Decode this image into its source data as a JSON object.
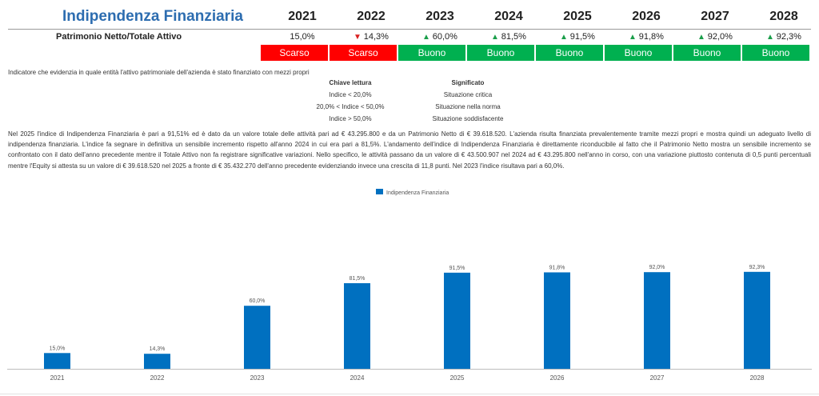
{
  "title": "Indipendenza Finanziaria",
  "years": [
    "2021",
    "2022",
    "2023",
    "2024",
    "2025",
    "2026",
    "2027",
    "2028"
  ],
  "row_label": "Patrimonio Netto/Totale Attivo",
  "values": [
    {
      "text": "15,0%",
      "trend": ""
    },
    {
      "text": "14,3%",
      "trend": "down"
    },
    {
      "text": "60,0%",
      "trend": "up"
    },
    {
      "text": "81,5%",
      "trend": "up"
    },
    {
      "text": "91,5%",
      "trend": "up"
    },
    {
      "text": "91,8%",
      "trend": "up"
    },
    {
      "text": "92,0%",
      "trend": "up"
    },
    {
      "text": "92,3%",
      "trend": "up"
    }
  ],
  "badges": [
    {
      "label": "Scarso",
      "color": "#ff0000"
    },
    {
      "label": "Scarso",
      "color": "#ff0000"
    },
    {
      "label": "Buono",
      "color": "#00b050"
    },
    {
      "label": "Buono",
      "color": "#00b050"
    },
    {
      "label": "Buono",
      "color": "#00b050"
    },
    {
      "label": "Buono",
      "color": "#00b050"
    },
    {
      "label": "Buono",
      "color": "#00b050"
    },
    {
      "label": "Buono",
      "color": "#00b050"
    }
  ],
  "description": "Indicatore che evidenzia in quale entità l'attivo patrimoniale dell'azienda è stato finanziato con mezzi propri",
  "key": {
    "col1_header": "Chiave lettura",
    "col2_header": "Significato",
    "rows": [
      {
        "k": "Indice < 20,0%",
        "v": "Situazione critica"
      },
      {
        "k": "20,0% < Indice < 50,0%",
        "v": "Situazione nella norma"
      },
      {
        "k": "Indice > 50,0%",
        "v": "Situazione soddisfacente"
      }
    ]
  },
  "paragraph": "Nel 2025 l'indice di Indipendenza Finanziaria è pari a 91,51% ed è dato da un valore totale delle attività pari ad € 43.295.800 e da un Patrimonio Netto di € 39.618.520. L'azienda risulta finanziata prevalentemente tramite mezzi propri e mostra quindi un adeguato livello di indipendenza finanziaria. L'indice fa segnare in definitiva un sensibile incremento rispetto all'anno 2024 in cui era pari a 81,5%. L'andamento dell'indice di Indipendenza Finanziaria è direttamente riconducibile al fatto che il Patrimonio Netto mostra un sensibile incremento se confrontato con il dato dell'anno precedente mentre il Totale Attivo non fa registrare significative variazioni. Nello specifico, le attività passano da un valore di € 43.500.907 nel 2024 ad € 43.295.800 nell'anno in corso, con una variazione piuttosto contenuta di 0,5 punti percentuali mentre l'Equity si attesta su un valore di € 39.618.520 nel 2025 a fronte di € 35.432.270 dell'anno precedente evidenziando invece una crescita di 11,8 punti. Nel 2023 l'indice risultava pari a 60,0%.",
  "chart_data": {
    "type": "bar",
    "categories": [
      "2021",
      "2022",
      "2023",
      "2024",
      "2025",
      "2026",
      "2027",
      "2028"
    ],
    "series": [
      {
        "name": "Indipendenza Finanziaria",
        "values": [
          15.0,
          14.3,
          60.0,
          81.5,
          91.5,
          91.8,
          92.0,
          92.3
        ],
        "color": "#0070c0"
      }
    ],
    "data_labels": [
      "15,0%",
      "14,3%",
      "60,0%",
      "81,5%",
      "91,5%",
      "91,8%",
      "92,0%",
      "92,3%"
    ],
    "legend": "top-center",
    "grid": false,
    "ylim": [
      0,
      115
    ]
  }
}
